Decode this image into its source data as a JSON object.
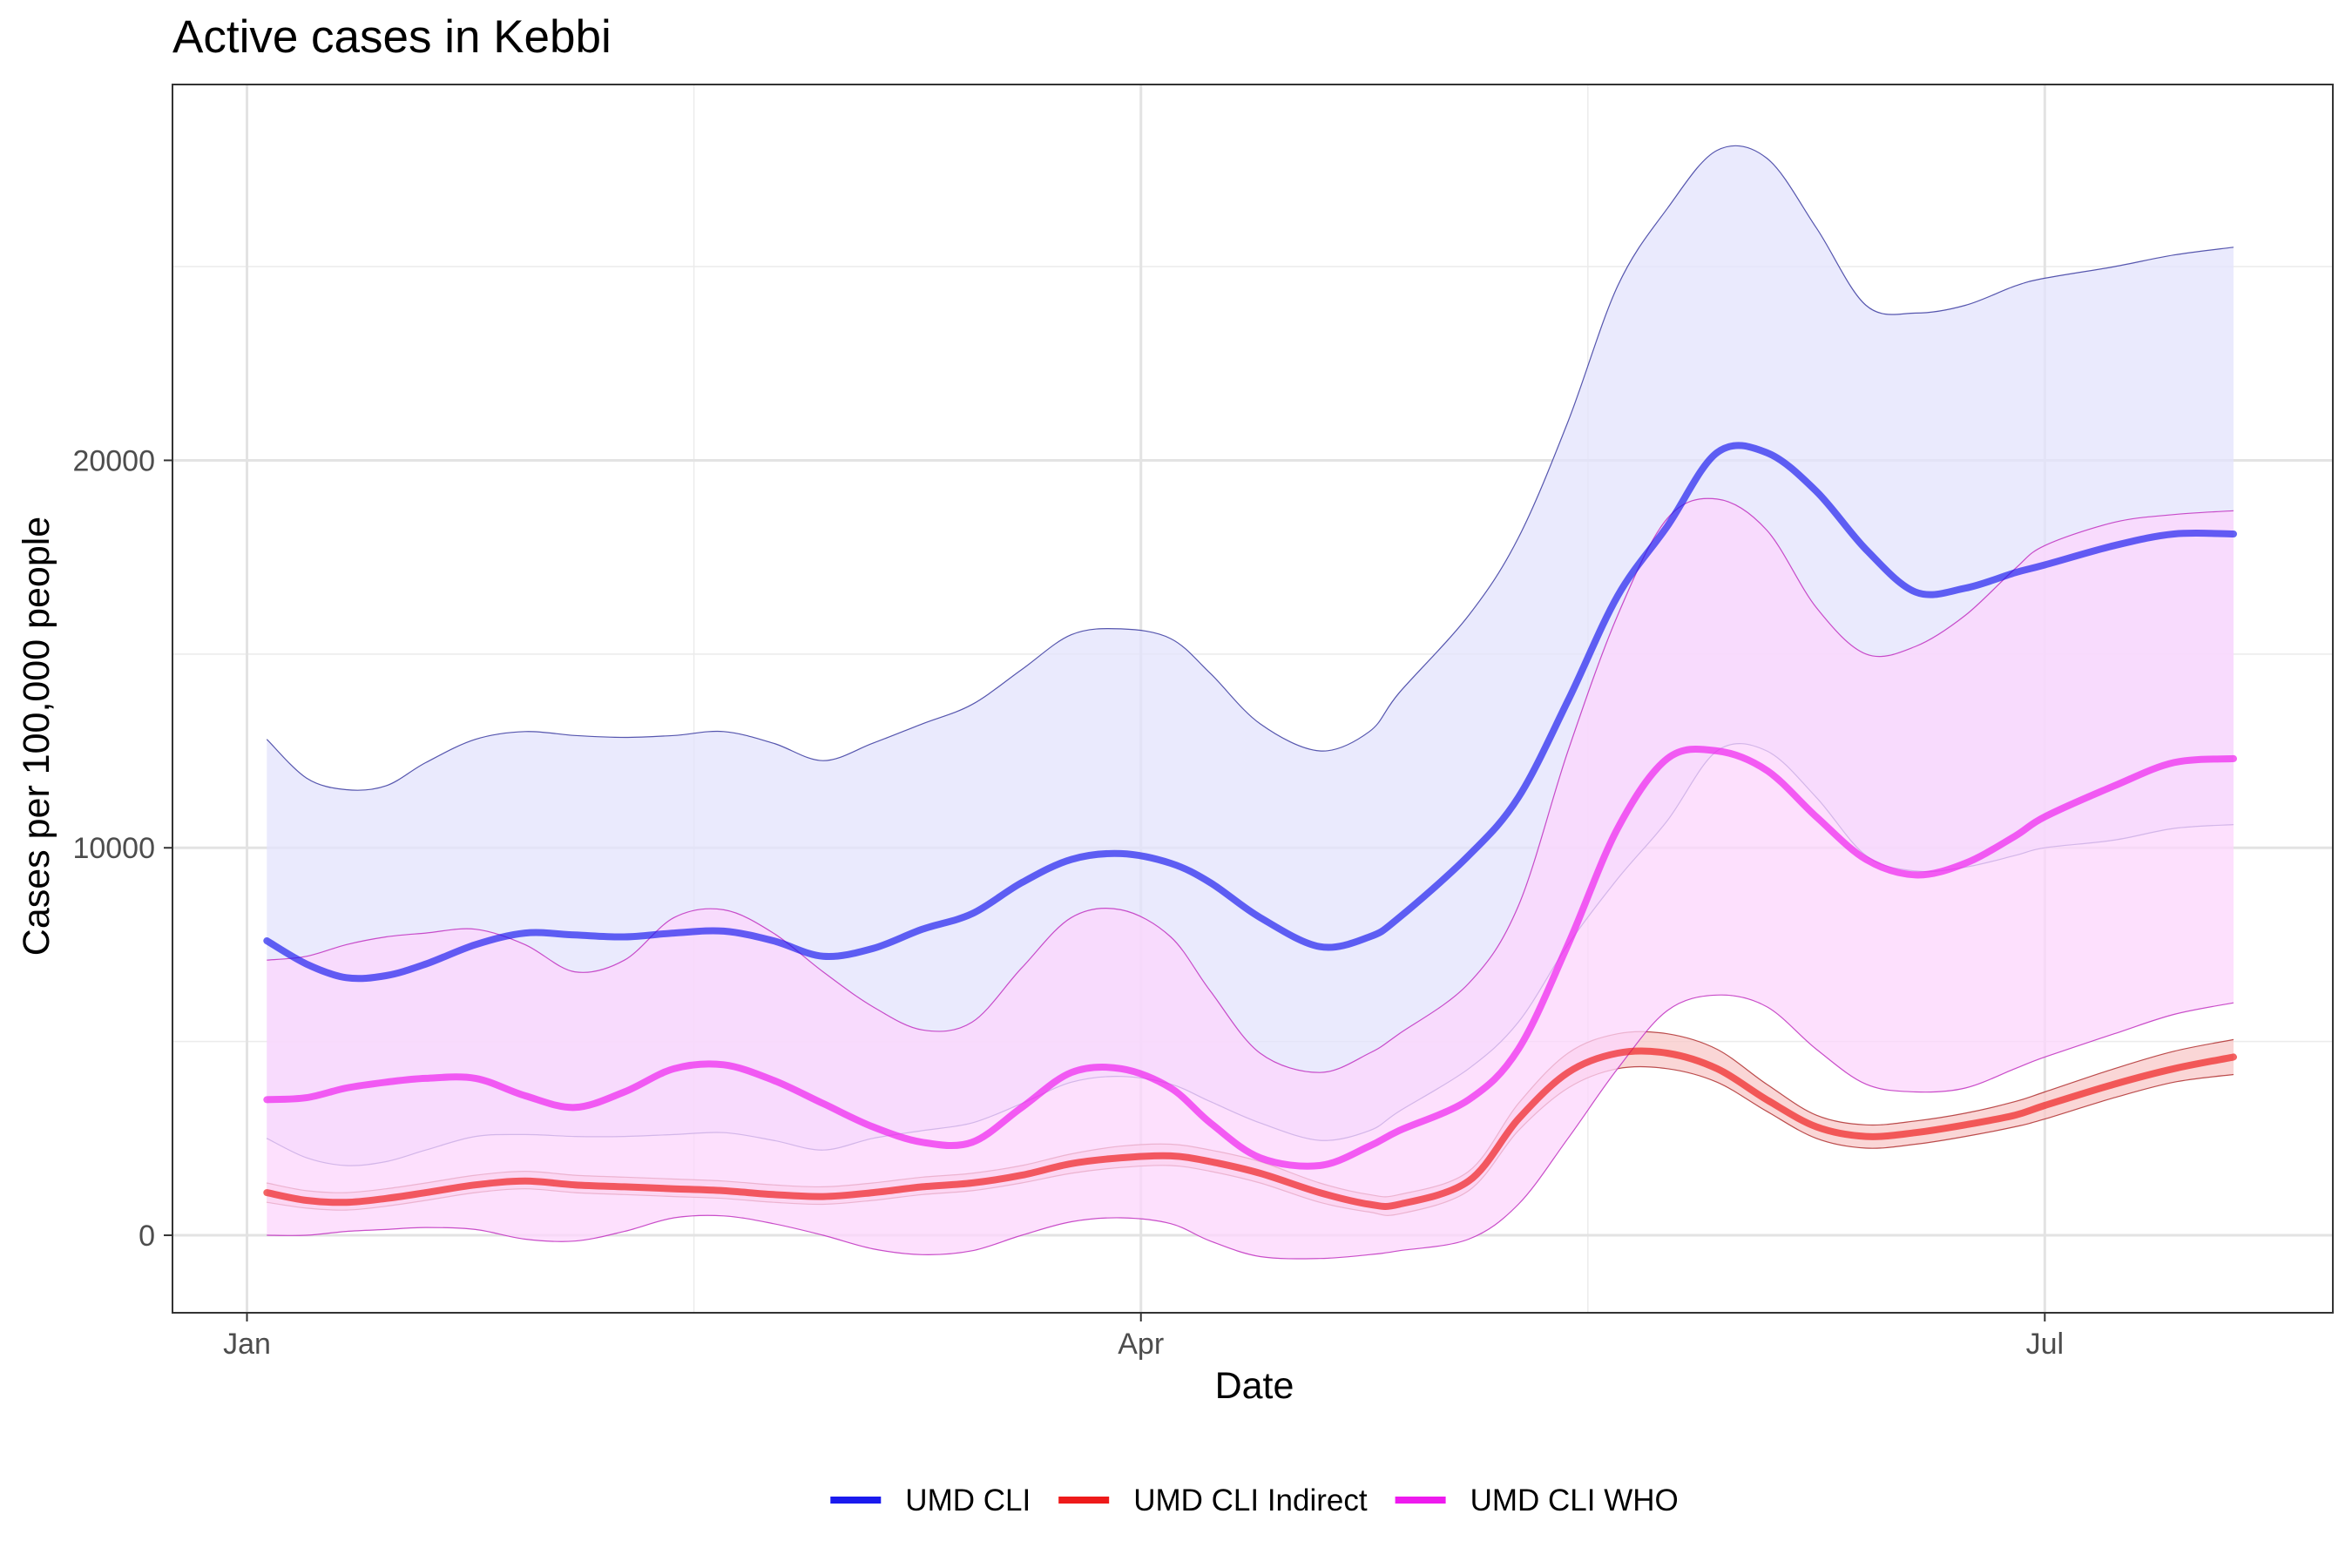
{
  "chart_data": {
    "type": "line",
    "title": "Active cases in Kebbi",
    "xlabel": "Date",
    "ylabel": "Cases per 100,000 people",
    "x_ticks": [
      {
        "label": "Jan",
        "day": 2
      },
      {
        "label": "Apr",
        "day": 92
      },
      {
        "label": "Jul",
        "day": 183
      }
    ],
    "x_minor_ticks": [
      47,
      137
    ],
    "xlim": [
      -5.5,
      212
    ],
    "y_ticks": [
      0,
      10000,
      20000
    ],
    "y_minor_ticks": [
      5000,
      15000,
      25000
    ],
    "ylim": [
      -2000,
      29700
    ],
    "grid": true,
    "legend_position": "bottom",
    "series": [
      {
        "name": "UMD CLI",
        "color": "#1a1aee",
        "fill": "#e3e3fc",
        "band_stroke": "#3a3aa0",
        "day": [
          4,
          8,
          12,
          16,
          20,
          25,
          30,
          35,
          40,
          45,
          50,
          55,
          60,
          65,
          70,
          75,
          80,
          85,
          90,
          95,
          99,
          104,
          110,
          115,
          118,
          125,
          130,
          135,
          140,
          145,
          150,
          155,
          160,
          165,
          170,
          175,
          180,
          183,
          190,
          196,
          202
        ],
        "value": [
          7600,
          7000,
          6650,
          6700,
          7000,
          7500,
          7800,
          7750,
          7700,
          7800,
          7850,
          7600,
          7200,
          7400,
          7900,
          8300,
          9100,
          9700,
          9850,
          9600,
          9100,
          8200,
          7450,
          7700,
          8200,
          9800,
          11300,
          13800,
          16500,
          18300,
          20200,
          20200,
          19200,
          17700,
          16600,
          16700,
          17100,
          17300,
          17800,
          18100,
          18100
        ],
        "lower": [
          2500,
          2000,
          1800,
          1900,
          2200,
          2550,
          2600,
          2550,
          2550,
          2600,
          2650,
          2450,
          2200,
          2500,
          2700,
          2900,
          3400,
          3950,
          4100,
          3900,
          3450,
          2900,
          2450,
          2700,
          3200,
          4300,
          5500,
          7500,
          9200,
          10700,
          12500,
          12500,
          11300,
          9800,
          9400,
          9500,
          9800,
          10000,
          10200,
          10500,
          10600
        ],
        "upper": [
          12800,
          11800,
          11500,
          11600,
          12200,
          12800,
          13000,
          12900,
          12850,
          12900,
          13000,
          12700,
          12250,
          12700,
          13200,
          13700,
          14600,
          15500,
          15650,
          15400,
          14500,
          13200,
          12500,
          13000,
          14000,
          16000,
          18000,
          21000,
          24500,
          26500,
          28000,
          27800,
          26000,
          24000,
          23800,
          24000,
          24500,
          24700,
          25000,
          25300,
          25500
        ]
      },
      {
        "name": "UMD CLI Indirect",
        "color": "#ee1a1a",
        "fill": "#f8c8c8",
        "band_stroke": "#b03030",
        "day": [
          4,
          8,
          12,
          16,
          20,
          25,
          30,
          35,
          40,
          45,
          50,
          55,
          60,
          65,
          70,
          75,
          80,
          85,
          90,
          95,
          99,
          104,
          110,
          115,
          118,
          125,
          130,
          135,
          140,
          145,
          150,
          155,
          160,
          165,
          170,
          175,
          180,
          183,
          190,
          196,
          202
        ],
        "value": [
          1100,
          900,
          850,
          950,
          1100,
          1300,
          1400,
          1300,
          1250,
          1200,
          1150,
          1050,
          1000,
          1100,
          1250,
          1350,
          1550,
          1850,
          2000,
          2050,
          1900,
          1600,
          1100,
          800,
          800,
          1400,
          3000,
          4200,
          4700,
          4700,
          4300,
          3500,
          2800,
          2550,
          2650,
          2850,
          3100,
          3350,
          3900,
          4300,
          4600
        ],
        "lower": [
          850,
          700,
          650,
          750,
          900,
          1100,
          1200,
          1100,
          1050,
          1000,
          950,
          850,
          800,
          900,
          1050,
          1150,
          1350,
          1600,
          1750,
          1800,
          1650,
          1350,
          850,
          600,
          550,
          1150,
          2700,
          3800,
          4300,
          4300,
          3950,
          3200,
          2500,
          2250,
          2350,
          2550,
          2800,
          3000,
          3550,
          3950,
          4150
        ],
        "upper": [
          1350,
          1150,
          1100,
          1200,
          1350,
          1550,
          1650,
          1550,
          1500,
          1450,
          1400,
          1300,
          1250,
          1350,
          1500,
          1600,
          1800,
          2100,
          2300,
          2350,
          2200,
          1900,
          1350,
          1050,
          1050,
          1650,
          3400,
          4700,
          5200,
          5200,
          4800,
          3900,
          3100,
          2850,
          2950,
          3150,
          3450,
          3700,
          4300,
          4750,
          5050
        ]
      },
      {
        "name": "UMD CLI WHO",
        "color": "#ee1aee",
        "fill": "#fcd5fc",
        "band_stroke": "#c030c0",
        "day": [
          4,
          8,
          12,
          16,
          20,
          25,
          30,
          35,
          40,
          45,
          50,
          55,
          60,
          65,
          70,
          75,
          80,
          85,
          90,
          95,
          99,
          104,
          110,
          115,
          118,
          125,
          130,
          135,
          140,
          145,
          150,
          155,
          160,
          165,
          170,
          175,
          180,
          183,
          190,
          196,
          202
        ],
        "value": [
          3500,
          3550,
          3800,
          3950,
          4050,
          4050,
          3600,
          3300,
          3700,
          4300,
          4400,
          4000,
          3400,
          2800,
          2400,
          2400,
          3300,
          4200,
          4300,
          3800,
          2900,
          2000,
          1800,
          2300,
          2700,
          3500,
          4800,
          7500,
          10500,
          12300,
          12500,
          12000,
          10800,
          9700,
          9300,
          9600,
          10300,
          10800,
          11600,
          12200,
          12300
        ],
        "lower": [
          0,
          0,
          100,
          150,
          200,
          150,
          -100,
          -150,
          100,
          450,
          500,
          300,
          0,
          -350,
          -500,
          -400,
          0,
          350,
          450,
          300,
          -150,
          -550,
          -600,
          -500,
          -400,
          -100,
          800,
          2500,
          4300,
          5800,
          6200,
          5900,
          4800,
          3900,
          3700,
          3800,
          4300,
          4600,
          5200,
          5700,
          6000
        ],
        "upper": [
          7100,
          7200,
          7500,
          7700,
          7800,
          7900,
          7500,
          6800,
          7100,
          8200,
          8400,
          7800,
          6800,
          5900,
          5300,
          5500,
          6900,
          8200,
          8400,
          7700,
          6300,
          4700,
          4200,
          4700,
          5200,
          6500,
          8500,
          12500,
          16000,
          18500,
          19000,
          18200,
          16200,
          15000,
          15200,
          16000,
          17200,
          17800,
          18400,
          18600,
          18700
        ]
      }
    ]
  }
}
